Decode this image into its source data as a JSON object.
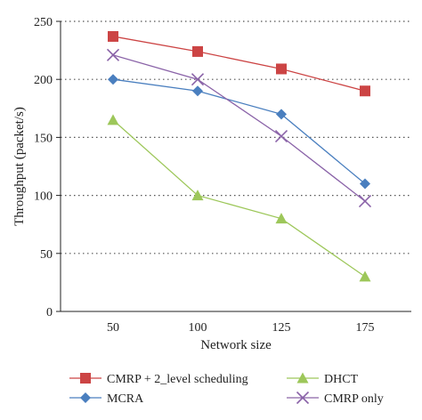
{
  "chart_data": {
    "type": "line",
    "categories": [
      "50",
      "100",
      "125",
      "175"
    ],
    "xlabel": "Network size",
    "ylabel": "Throughput (packet/s)",
    "ylim": [
      0,
      250
    ],
    "yticks": [
      0,
      50,
      100,
      150,
      200,
      250
    ],
    "grid": "horizontal dotted",
    "legend_position": "bottom",
    "series": [
      {
        "name": "CMRP + 2_level scheduling",
        "values": [
          237,
          224,
          209,
          190
        ],
        "color": "#cc4444",
        "marker": "square"
      },
      {
        "name": "MCRA",
        "values": [
          200,
          190,
          170,
          110
        ],
        "color": "#4a7fbf",
        "marker": "diamond"
      },
      {
        "name": "DHCT",
        "values": [
          165,
          100,
          80,
          30
        ],
        "color": "#9dc75a",
        "marker": "triangle"
      },
      {
        "name": "CMRP only",
        "values": [
          221,
          200,
          151,
          95
        ],
        "color": "#8a63a8",
        "marker": "x"
      }
    ]
  }
}
